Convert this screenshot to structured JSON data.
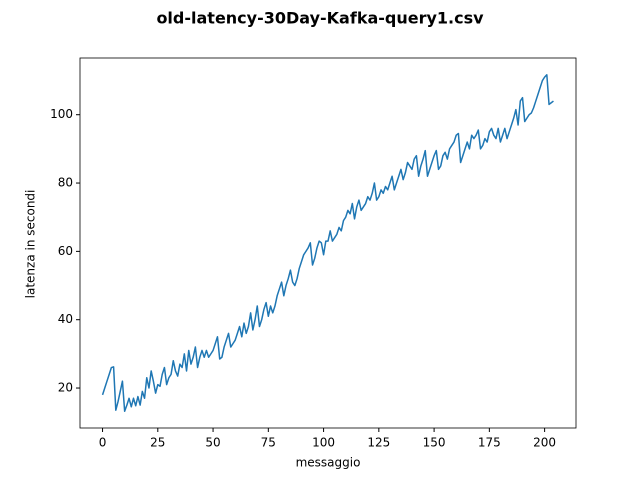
{
  "chart_data": {
    "type": "line",
    "title": "old-latency-30Day-Kafka-query1.csv",
    "x_label": "messaggio",
    "y_label": "latenza in secondi",
    "x": [
      0,
      1,
      2,
      3,
      4,
      5,
      6,
      7,
      8,
      9,
      10,
      11,
      12,
      13,
      14,
      15,
      16,
      17,
      18,
      19,
      20,
      21,
      22,
      23,
      24,
      25,
      26,
      27,
      28,
      29,
      30,
      31,
      32,
      33,
      34,
      35,
      36,
      37,
      38,
      39,
      40,
      41,
      42,
      43,
      44,
      45,
      46,
      47,
      48,
      49,
      50,
      51,
      52,
      53,
      54,
      55,
      56,
      57,
      58,
      59,
      60,
      61,
      62,
      63,
      64,
      65,
      66,
      67,
      68,
      69,
      70,
      71,
      72,
      73,
      74,
      75,
      76,
      77,
      78,
      79,
      80,
      81,
      82,
      83,
      84,
      85,
      86,
      87,
      88,
      89,
      90,
      91,
      92,
      93,
      94,
      95,
      96,
      97,
      98,
      99,
      100,
      101,
      102,
      103,
      104,
      105,
      106,
      107,
      108,
      109,
      110,
      111,
      112,
      113,
      114,
      115,
      116,
      117,
      118,
      119,
      120,
      121,
      122,
      123,
      124,
      125,
      126,
      127,
      128,
      129,
      130,
      131,
      132,
      133,
      134,
      135,
      136,
      137,
      138,
      139,
      140,
      141,
      142,
      143,
      144,
      145,
      146,
      147,
      148,
      149,
      150,
      151,
      152,
      153,
      154,
      155,
      156,
      157,
      158,
      159,
      160,
      161,
      162,
      163,
      164,
      165,
      166,
      167,
      168,
      169,
      170,
      171,
      172,
      173,
      174,
      175,
      176,
      177,
      178,
      179,
      180,
      181,
      182,
      183,
      184,
      185,
      186,
      187,
      188,
      189,
      190,
      191,
      192,
      193,
      194,
      195,
      196,
      197,
      198,
      199,
      200,
      201,
      202,
      203,
      204
    ],
    "series": [
      {
        "name": "latenza",
        "color": "#1f77b4",
        "values": [
          18,
          20,
          22,
          24,
          26,
          26.2,
          13.5,
          16,
          19,
          22,
          13.2,
          15,
          17,
          14.5,
          17,
          14.8,
          17.5,
          15,
          19,
          17,
          23,
          20,
          25,
          22,
          18.5,
          21,
          20.5,
          24,
          26,
          21,
          23,
          24,
          28,
          25,
          23.5,
          27,
          26,
          30,
          25,
          31,
          27,
          29,
          32,
          26,
          29,
          31,
          29,
          31,
          29,
          30,
          31,
          33,
          35,
          28.5,
          29,
          32,
          34,
          36,
          32,
          33,
          34,
          36,
          38,
          35,
          39,
          36,
          38,
          42,
          37,
          40,
          44,
          38,
          40,
          43,
          45,
          41,
          44,
          42,
          44,
          47,
          49,
          51,
          47,
          50,
          52,
          54.5,
          51,
          50,
          52,
          55,
          57,
          59,
          60,
          61,
          62.5,
          56,
          58,
          61,
          63,
          62.5,
          59,
          63,
          63,
          66,
          63,
          64,
          65,
          67,
          66,
          69,
          70,
          72,
          71,
          74,
          69.5,
          73,
          75,
          72,
          73,
          74,
          76,
          75,
          77,
          80,
          75,
          76,
          78,
          77,
          79,
          78,
          80,
          82,
          78,
          80,
          82,
          84,
          81,
          83,
          86,
          85,
          84,
          87,
          88,
          82,
          85,
          87,
          89.5,
          82,
          84,
          86,
          88,
          89.5,
          84,
          85,
          88,
          89,
          87,
          90,
          91,
          92,
          94,
          94.5,
          86,
          88,
          90,
          92,
          90,
          94,
          93,
          94,
          95.5,
          90,
          91,
          93,
          92,
          95,
          96,
          94,
          93,
          96,
          92,
          94,
          96,
          93,
          95,
          97,
          99,
          101.5,
          97,
          104,
          105,
          98,
          99,
          100,
          100.5,
          102,
          104,
          106,
          108,
          110,
          111,
          111.7,
          103,
          103.5,
          104
        ]
      }
    ],
    "xlim": [
      -10.2,
      214.2
    ],
    "ylim": [
      8.3,
      116.6
    ],
    "xticks": [
      0,
      25,
      50,
      75,
      100,
      125,
      150,
      175,
      200
    ],
    "yticks": [
      20,
      40,
      60,
      80,
      100
    ]
  }
}
